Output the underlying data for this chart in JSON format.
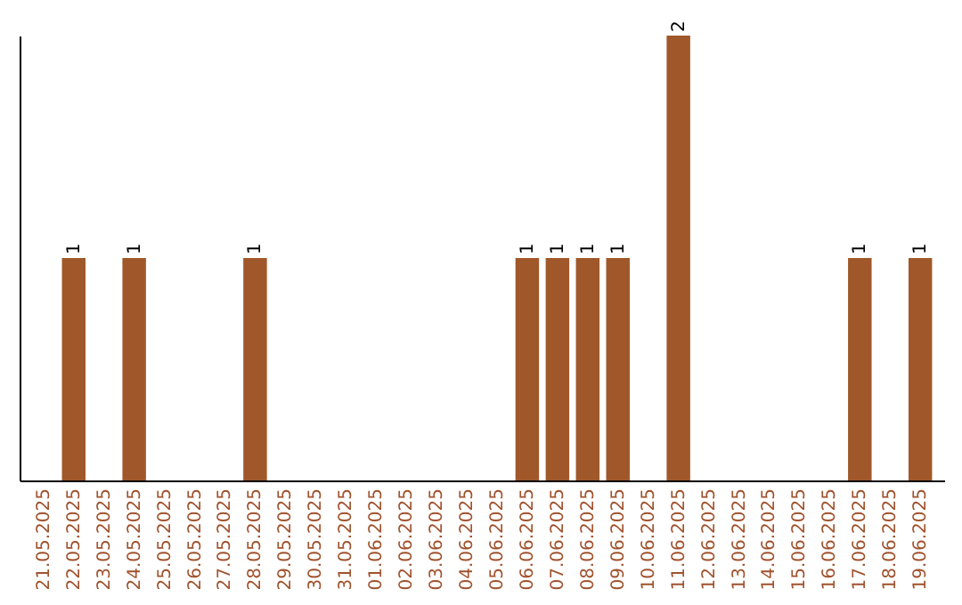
{
  "chart_data": {
    "type": "bar",
    "categories": [
      "21.05.2025",
      "22.05.2025",
      "23.05.2025",
      "24.05.2025",
      "25.05.2025",
      "26.05.2025",
      "27.05.2025",
      "28.05.2025",
      "29.05.2025",
      "30.05.2025",
      "31.05.2025",
      "01.06.2025",
      "02.06.2025",
      "03.06.2025",
      "04.06.2025",
      "05.06.2025",
      "06.06.2025",
      "07.06.2025",
      "08.06.2025",
      "09.06.2025",
      "10.06.2025",
      "11.06.2025",
      "12.06.2025",
      "13.06.2025",
      "14.06.2025",
      "15.06.2025",
      "16.06.2025",
      "17.06.2025",
      "18.06.2025",
      "19.06.2025"
    ],
    "values": [
      0,
      1,
      0,
      1,
      0,
      0,
      0,
      1,
      0,
      0,
      0,
      0,
      0,
      0,
      0,
      0,
      1,
      1,
      1,
      1,
      0,
      2,
      0,
      0,
      0,
      0,
      0,
      1,
      0,
      1
    ],
    "value_labels": [
      null,
      "1",
      null,
      "1",
      null,
      null,
      null,
      "1",
      null,
      null,
      null,
      null,
      null,
      null,
      null,
      null,
      "1",
      "1",
      "1",
      "1",
      null,
      "2",
      null,
      null,
      null,
      null,
      null,
      "1",
      null,
      "1"
    ],
    "color": "#a0582a"
  }
}
